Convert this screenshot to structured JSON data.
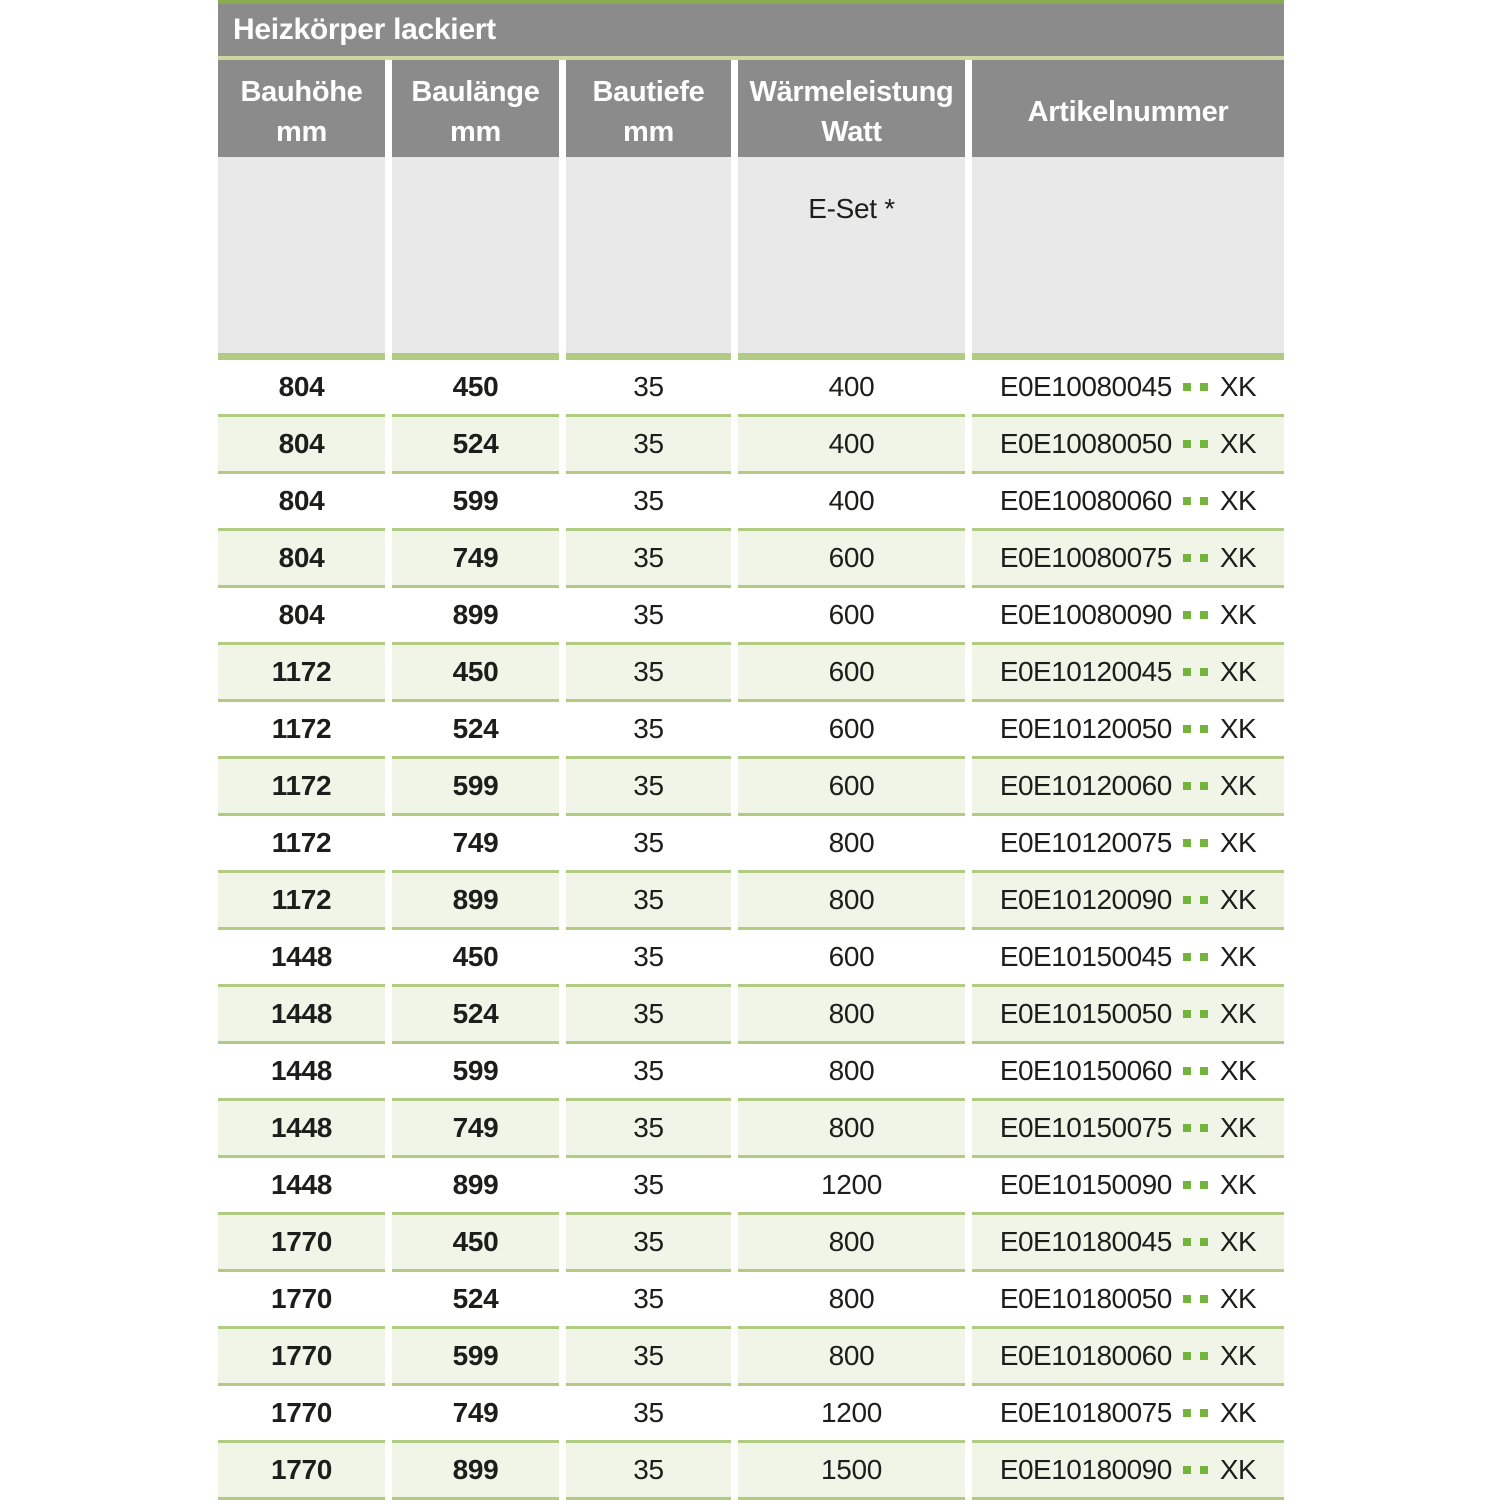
{
  "header": {
    "title": "Heizkörper lackiert"
  },
  "columns": [
    {
      "line1": "Bauhöhe",
      "line2": "mm"
    },
    {
      "line1": "Baulänge",
      "line2": "mm"
    },
    {
      "line1": "Bautiefe",
      "line2": "mm"
    },
    {
      "line1": "Wärmeleistung",
      "line2": "Watt"
    },
    {
      "line1": "Artikelnummer",
      "line2": ""
    }
  ],
  "subheader": {
    "e_set_label": "E-Set *"
  },
  "colors": {
    "header_gray": "#8b8b8b",
    "subheader_gray": "#e9e9e9",
    "rule_green": "#b2cb83",
    "top_rule_green": "#8aab52",
    "title_rule_green": "#ccd7a4",
    "row_tint_green": "#f0f5e8",
    "dot_green": "#74b43c",
    "text_dark": "#1d1d1b"
  },
  "table": {
    "rows": [
      {
        "bauhoehe": "804",
        "baulaenge": "450",
        "bautiefe": "35",
        "watt": "400",
        "artikel_prefix": "E0E10080045",
        "artikel_suffix": "XK"
      },
      {
        "bauhoehe": "804",
        "baulaenge": "524",
        "bautiefe": "35",
        "watt": "400",
        "artikel_prefix": "E0E10080050",
        "artikel_suffix": "XK"
      },
      {
        "bauhoehe": "804",
        "baulaenge": "599",
        "bautiefe": "35",
        "watt": "400",
        "artikel_prefix": "E0E10080060",
        "artikel_suffix": "XK"
      },
      {
        "bauhoehe": "804",
        "baulaenge": "749",
        "bautiefe": "35",
        "watt": "600",
        "artikel_prefix": "E0E10080075",
        "artikel_suffix": "XK"
      },
      {
        "bauhoehe": "804",
        "baulaenge": "899",
        "bautiefe": "35",
        "watt": "600",
        "artikel_prefix": "E0E10080090",
        "artikel_suffix": "XK"
      },
      {
        "bauhoehe": "1172",
        "baulaenge": "450",
        "bautiefe": "35",
        "watt": "600",
        "artikel_prefix": "E0E10120045",
        "artikel_suffix": "XK"
      },
      {
        "bauhoehe": "1172",
        "baulaenge": "524",
        "bautiefe": "35",
        "watt": "600",
        "artikel_prefix": "E0E10120050",
        "artikel_suffix": "XK"
      },
      {
        "bauhoehe": "1172",
        "baulaenge": "599",
        "bautiefe": "35",
        "watt": "600",
        "artikel_prefix": "E0E10120060",
        "artikel_suffix": "XK"
      },
      {
        "bauhoehe": "1172",
        "baulaenge": "749",
        "bautiefe": "35",
        "watt": "800",
        "artikel_prefix": "E0E10120075",
        "artikel_suffix": "XK"
      },
      {
        "bauhoehe": "1172",
        "baulaenge": "899",
        "bautiefe": "35",
        "watt": "800",
        "artikel_prefix": "E0E10120090",
        "artikel_suffix": "XK"
      },
      {
        "bauhoehe": "1448",
        "baulaenge": "450",
        "bautiefe": "35",
        "watt": "600",
        "artikel_prefix": "E0E10150045",
        "artikel_suffix": "XK"
      },
      {
        "bauhoehe": "1448",
        "baulaenge": "524",
        "bautiefe": "35",
        "watt": "800",
        "artikel_prefix": "E0E10150050",
        "artikel_suffix": "XK"
      },
      {
        "bauhoehe": "1448",
        "baulaenge": "599",
        "bautiefe": "35",
        "watt": "800",
        "artikel_prefix": "E0E10150060",
        "artikel_suffix": "XK"
      },
      {
        "bauhoehe": "1448",
        "baulaenge": "749",
        "bautiefe": "35",
        "watt": "800",
        "artikel_prefix": "E0E10150075",
        "artikel_suffix": "XK"
      },
      {
        "bauhoehe": "1448",
        "baulaenge": "899",
        "bautiefe": "35",
        "watt": "1200",
        "artikel_prefix": "E0E10150090",
        "artikel_suffix": "XK"
      },
      {
        "bauhoehe": "1770",
        "baulaenge": "450",
        "bautiefe": "35",
        "watt": "800",
        "artikel_prefix": "E0E10180045",
        "artikel_suffix": "XK"
      },
      {
        "bauhoehe": "1770",
        "baulaenge": "524",
        "bautiefe": "35",
        "watt": "800",
        "artikel_prefix": "E0E10180050",
        "artikel_suffix": "XK"
      },
      {
        "bauhoehe": "1770",
        "baulaenge": "599",
        "bautiefe": "35",
        "watt": "800",
        "artikel_prefix": "E0E10180060",
        "artikel_suffix": "XK"
      },
      {
        "bauhoehe": "1770",
        "baulaenge": "749",
        "bautiefe": "35",
        "watt": "1200",
        "artikel_prefix": "E0E10180075",
        "artikel_suffix": "XK"
      },
      {
        "bauhoehe": "1770",
        "baulaenge": "899",
        "bautiefe": "35",
        "watt": "1500",
        "artikel_prefix": "E0E10180090",
        "artikel_suffix": "XK"
      }
    ]
  }
}
